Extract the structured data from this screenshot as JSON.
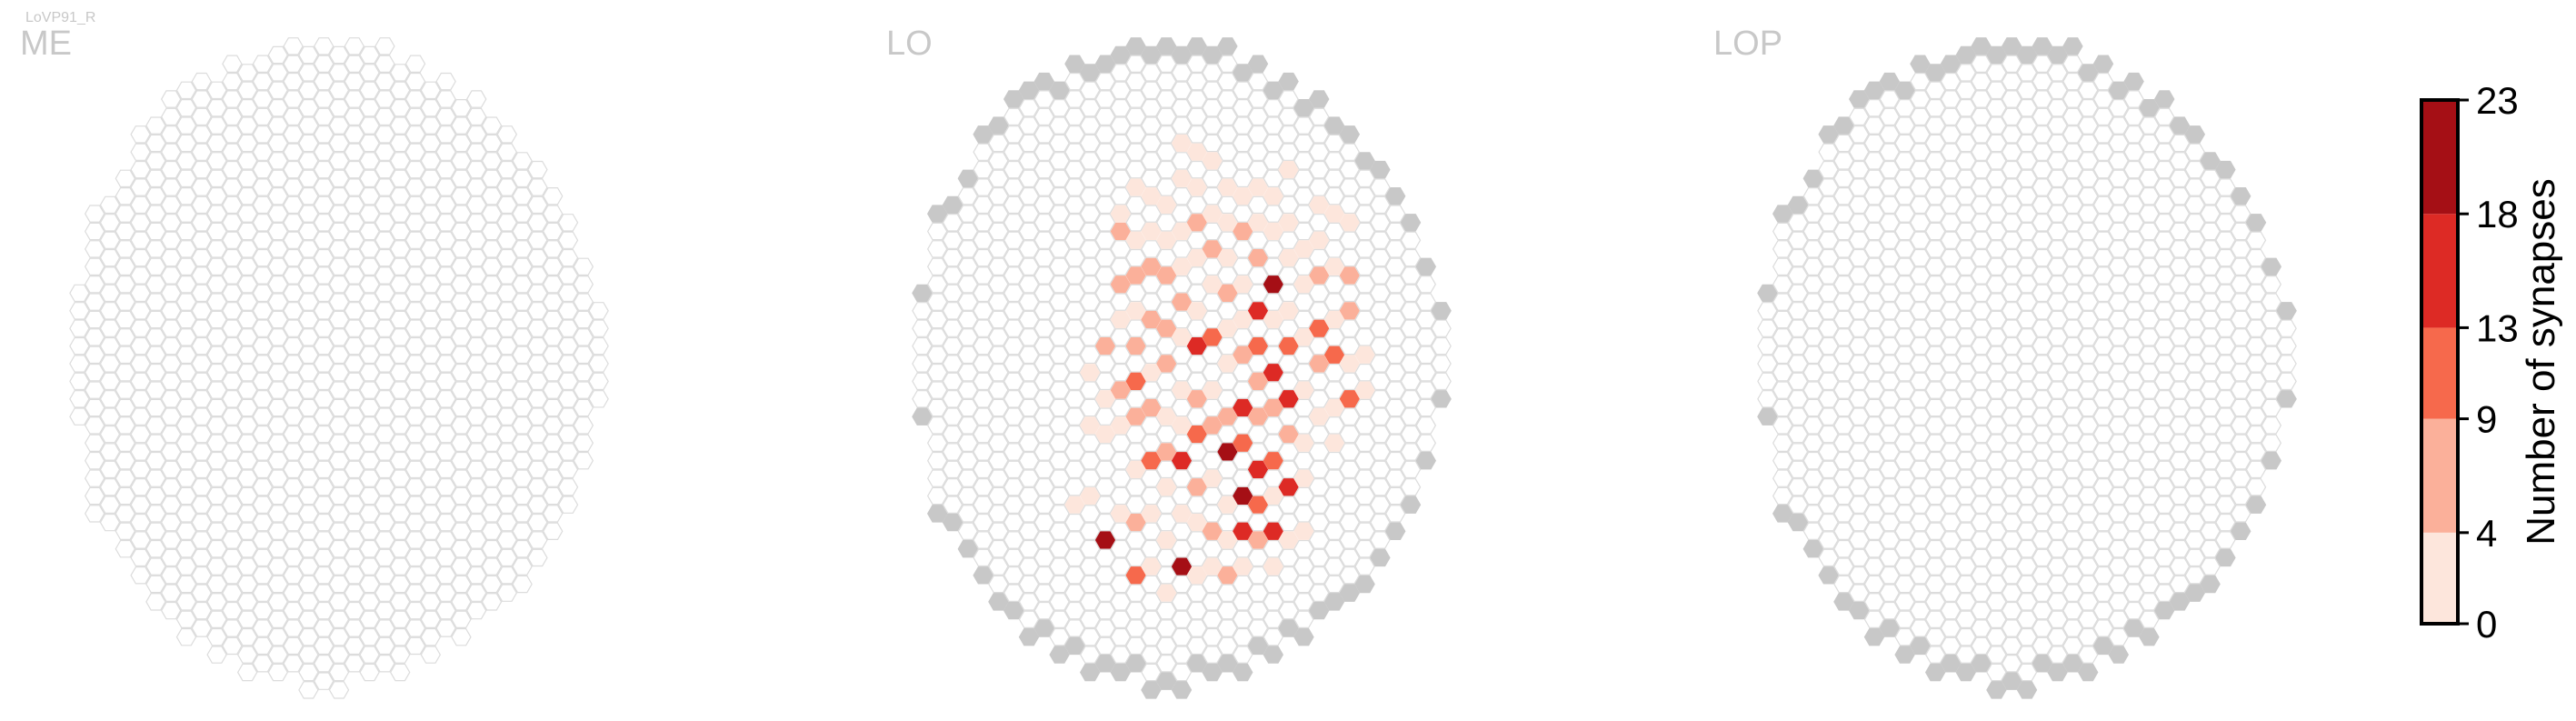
{
  "figure_label": "LoVP91_R",
  "panels": [
    {
      "title": "ME"
    },
    {
      "title": "LO"
    },
    {
      "title": "LOP"
    }
  ],
  "colors": {
    "empty_stroke": "#dcdcdc",
    "empty_fill": "#ffffff",
    "no_data_fill": "#c8c8c8",
    "bins": [
      "#fde6dc",
      "#fbb09a",
      "#f6694c",
      "#dd2a25",
      "#a50f15"
    ]
  },
  "chart_data": {
    "type": "heatmap",
    "layout": "hexagonal column map",
    "colorbar": {
      "label": "Number of synapses",
      "ticks": [
        0,
        4,
        9,
        13,
        18,
        23
      ],
      "min": 0,
      "max": 23,
      "bins": 5
    },
    "grid": {
      "cols": 35,
      "rows": 39,
      "lo_rows_per_col": [
        8,
        18,
        19,
        22,
        26,
        28,
        30,
        32,
        32,
        33,
        34,
        35,
        35,
        36,
        36,
        37,
        37,
        37,
        36,
        36,
        36,
        35,
        34,
        33,
        32,
        31,
        30,
        28,
        27,
        25,
        23,
        20,
        17,
        12,
        6
      ]
    },
    "panels": [
      {
        "name": "ME",
        "values": []
      },
      {
        "name": "LO",
        "values": [
          [
            10,
            27,
            3
          ],
          [
            11,
            26,
            2
          ],
          [
            11,
            22,
            2
          ],
          [
            11,
            19,
            1
          ],
          [
            12,
            29,
            20
          ],
          [
            12,
            23,
            1
          ],
          [
            12,
            21,
            2
          ],
          [
            12,
            18,
            6
          ],
          [
            13,
            27,
            2
          ],
          [
            13,
            22,
            3
          ],
          [
            13,
            20,
            8
          ],
          [
            13,
            16,
            3
          ],
          [
            13,
            14,
            5
          ],
          [
            13,
            11,
            6
          ],
          [
            13,
            10,
            1
          ],
          [
            14,
            31,
            12
          ],
          [
            14,
            28,
            6
          ],
          [
            14,
            25,
            1
          ],
          [
            14,
            22,
            7
          ],
          [
            14,
            20,
            10
          ],
          [
            14,
            18,
            7
          ],
          [
            14,
            16,
            2
          ],
          [
            14,
            14,
            8
          ],
          [
            14,
            12,
            2
          ],
          [
            14,
            9,
            2
          ],
          [
            15,
            30,
            2
          ],
          [
            15,
            27,
            1
          ],
          [
            15,
            24,
            10
          ],
          [
            15,
            21,
            5
          ],
          [
            15,
            19,
            1
          ],
          [
            15,
            16,
            8
          ],
          [
            15,
            13,
            6
          ],
          [
            15,
            11,
            2
          ],
          [
            15,
            9,
            2
          ],
          [
            16,
            32,
            4
          ],
          [
            16,
            29,
            3
          ],
          [
            16,
            26,
            2
          ],
          [
            16,
            24,
            7
          ],
          [
            16,
            22,
            4
          ],
          [
            16,
            19,
            7
          ],
          [
            16,
            17,
            5
          ],
          [
            16,
            14,
            9
          ],
          [
            16,
            12,
            3
          ],
          [
            16,
            10,
            2
          ],
          [
            17,
            30,
            20
          ],
          [
            17,
            27,
            1
          ],
          [
            17,
            24,
            14
          ],
          [
            17,
            22,
            4
          ],
          [
            17,
            20,
            2
          ],
          [
            17,
            17,
            3
          ],
          [
            17,
            15,
            9
          ],
          [
            17,
            13,
            2
          ],
          [
            17,
            11,
            3
          ],
          [
            17,
            8,
            2
          ],
          [
            17,
            6,
            1
          ],
          [
            18,
            31,
            1
          ],
          [
            18,
            28,
            3
          ],
          [
            18,
            26,
            9
          ],
          [
            18,
            23,
            10
          ],
          [
            18,
            21,
            6
          ],
          [
            18,
            18,
            15
          ],
          [
            18,
            16,
            3
          ],
          [
            18,
            13,
            4
          ],
          [
            18,
            11,
            5
          ],
          [
            18,
            9,
            2
          ],
          [
            18,
            7,
            1
          ],
          [
            19,
            30,
            2
          ],
          [
            19,
            28,
            8
          ],
          [
            19,
            25,
            4
          ],
          [
            19,
            22,
            9
          ],
          [
            19,
            20,
            1
          ],
          [
            19,
            17,
            11
          ],
          [
            19,
            14,
            3
          ],
          [
            19,
            12,
            8
          ],
          [
            19,
            10,
            1
          ],
          [
            19,
            7,
            4
          ],
          [
            20,
            31,
            5
          ],
          [
            20,
            29,
            4
          ],
          [
            20,
            27,
            2
          ],
          [
            20,
            24,
            20
          ],
          [
            20,
            22,
            9
          ],
          [
            20,
            19,
            4
          ],
          [
            20,
            17,
            2
          ],
          [
            20,
            15,
            5
          ],
          [
            20,
            13,
            3
          ],
          [
            20,
            11,
            2
          ],
          [
            20,
            9,
            2
          ],
          [
            21,
            30,
            4
          ],
          [
            21,
            28,
            14
          ],
          [
            21,
            26,
            21
          ],
          [
            21,
            23,
            11
          ],
          [
            21,
            21,
            15
          ],
          [
            21,
            18,
            7
          ],
          [
            21,
            16,
            4
          ],
          [
            21,
            14,
            3
          ],
          [
            21,
            11,
            9
          ],
          [
            21,
            9,
            3
          ],
          [
            22,
            29,
            5
          ],
          [
            22,
            27,
            12
          ],
          [
            22,
            25,
            18
          ],
          [
            22,
            22,
            5
          ],
          [
            22,
            20,
            9
          ],
          [
            22,
            18,
            11
          ],
          [
            22,
            16,
            14
          ],
          [
            22,
            13,
            6
          ],
          [
            22,
            11,
            3
          ],
          [
            22,
            9,
            1
          ],
          [
            23,
            30,
            2
          ],
          [
            23,
            28,
            14
          ],
          [
            23,
            26,
            3
          ],
          [
            23,
            24,
            10
          ],
          [
            23,
            21,
            6
          ],
          [
            23,
            19,
            18
          ],
          [
            23,
            16,
            4
          ],
          [
            23,
            14,
            20
          ],
          [
            23,
            11,
            4
          ],
          [
            23,
            9,
            3
          ],
          [
            24,
            29,
            3
          ],
          [
            24,
            26,
            14
          ],
          [
            24,
            23,
            5
          ],
          [
            24,
            21,
            18
          ],
          [
            24,
            18,
            10
          ],
          [
            24,
            16,
            3
          ],
          [
            24,
            13,
            2
          ],
          [
            24,
            11,
            3
          ],
          [
            24,
            8,
            2
          ],
          [
            25,
            28,
            2
          ],
          [
            25,
            25,
            4
          ],
          [
            25,
            23,
            2
          ],
          [
            25,
            20,
            4
          ],
          [
            25,
            17,
            3
          ],
          [
            25,
            14,
            2
          ],
          [
            25,
            12,
            1
          ],
          [
            26,
            22,
            1
          ],
          [
            26,
            19,
            6
          ],
          [
            26,
            17,
            13
          ],
          [
            26,
            14,
            8
          ],
          [
            26,
            12,
            4
          ],
          [
            26,
            10,
            3
          ],
          [
            27,
            23,
            3
          ],
          [
            27,
            21,
            1
          ],
          [
            27,
            18,
            12
          ],
          [
            27,
            16,
            2
          ],
          [
            27,
            13,
            3
          ],
          [
            27,
            10,
            1
          ],
          [
            28,
            21,
            12
          ],
          [
            28,
            19,
            3
          ],
          [
            28,
            16,
            9
          ],
          [
            28,
            14,
            5
          ],
          [
            28,
            11,
            2
          ],
          [
            29,
            20,
            1
          ],
          [
            29,
            18,
            4
          ]
        ]
      },
      {
        "name": "LOP",
        "values": []
      }
    ]
  }
}
